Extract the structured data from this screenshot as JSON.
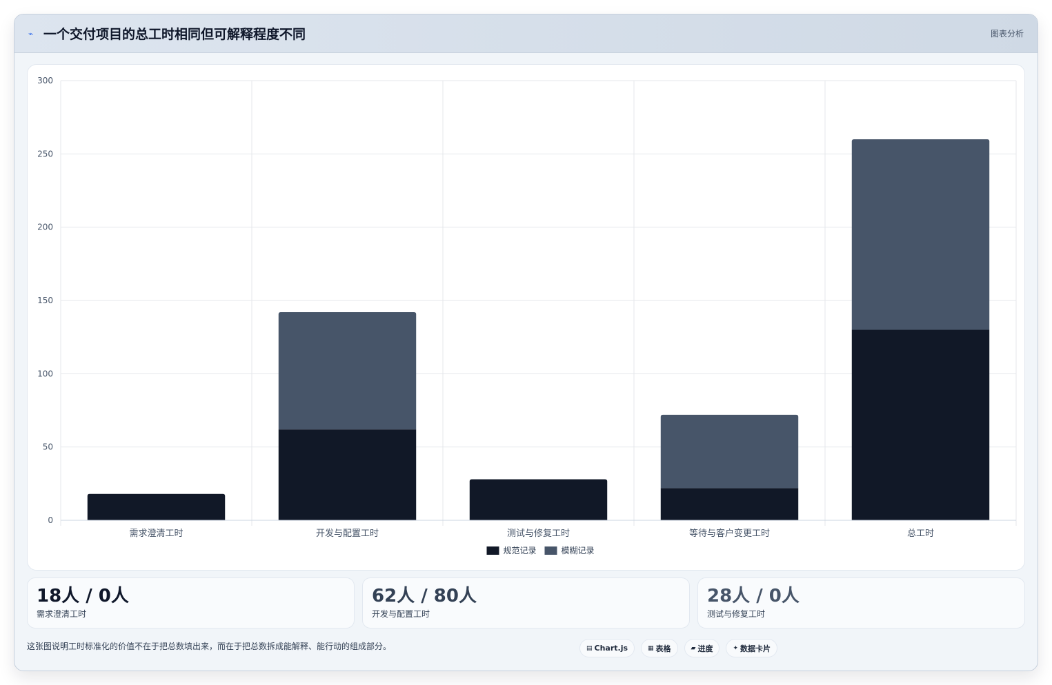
{
  "header": {
    "title": "一个交付项目的总工时相同但可解释程度不同",
    "right_label": "图表分析",
    "icon": "pulse-icon"
  },
  "chart_data": {
    "type": "bar",
    "stacked": true,
    "categories": [
      "需求澄清工时",
      "开发与配置工时",
      "测试与修复工时",
      "等待与客户变更工时",
      "总工时"
    ],
    "series": [
      {
        "name": "规范记录",
        "values": [
          18,
          62,
          28,
          22,
          130
        ],
        "color": "#111827"
      },
      {
        "name": "模糊记录",
        "values": [
          0,
          80,
          0,
          50,
          130
        ],
        "color": "#475569"
      }
    ],
    "ylim": [
      0,
      300
    ],
    "yticks": [
      0,
      50,
      100,
      150,
      200,
      250,
      300
    ],
    "grid": true,
    "legend_position": "bottom"
  },
  "cards": [
    {
      "value": "18人 / 0人",
      "label": "需求澄清工时",
      "color": "#0f172a"
    },
    {
      "value": "62人 / 80人",
      "label": "开发与配置工时",
      "color": "#334155"
    },
    {
      "value": "28人 / 0人",
      "label": "测试与修复工时",
      "color": "#475569"
    }
  ],
  "footer": {
    "text": "这张图说明工时标准化的价值不在于把总数填出来，而在于把总数拆成能解释、能行动的组成部分。",
    "chips": [
      {
        "icon": "▤",
        "label": "Chart.js"
      },
      {
        "icon": "▦",
        "label": "表格"
      },
      {
        "icon": "▰",
        "label": "进度"
      },
      {
        "icon": "✦",
        "label": "数据卡片"
      }
    ]
  }
}
